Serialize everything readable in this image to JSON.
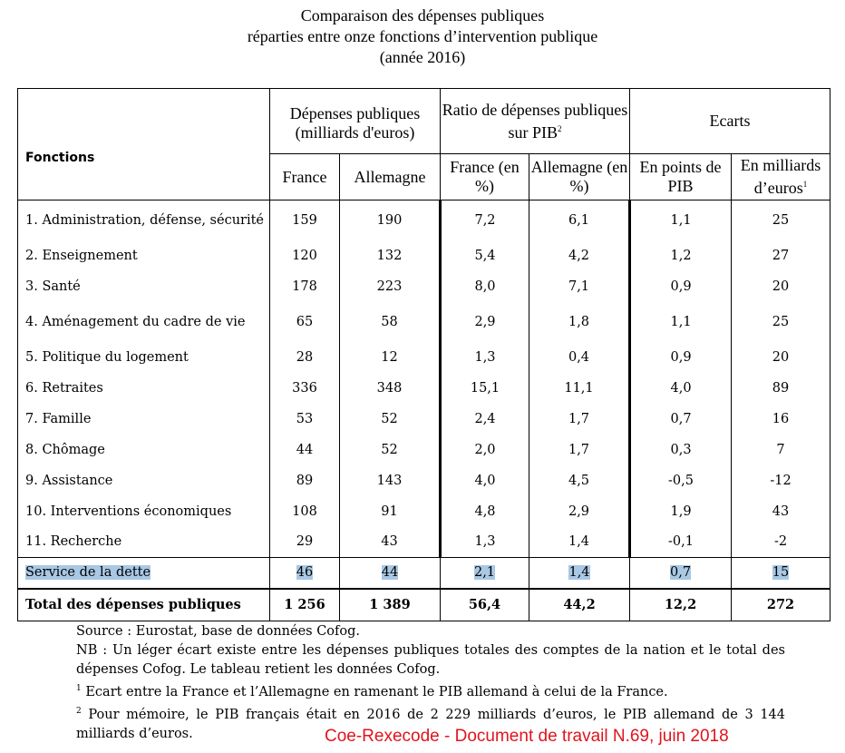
{
  "title": {
    "line1": "Comparaison des dépenses publiques",
    "line2": "réparties entre onze fonctions d’intervention publique",
    "line3": "(année 2016)"
  },
  "header": {
    "fonctions": "Fonctions",
    "group1": "Dépenses publiques (milliards d'euros)",
    "group2": "Ratio de dépenses publiques sur PIB",
    "group2_sup": "2",
    "group3": "Ecarts",
    "france": "France",
    "allemagne": "Allemagne",
    "france_pct": "France (en %)",
    "allemagne_pct": "Allemagne (en %)",
    "en_points": "En points de PIB",
    "en_milliards": "En milliards d’euros",
    "en_milliards_sup": "1"
  },
  "rows": [
    {
      "label": "1. Administration, défense, sécurité",
      "fr": "159",
      "de": "190",
      "fr_pct": "7,2",
      "de_pct": "6,1",
      "pts": "1,1",
      "mds": "25"
    },
    {
      "label": "2. Enseignement",
      "fr": "120",
      "de": "132",
      "fr_pct": "5,4",
      "de_pct": "4,2",
      "pts": "1,2",
      "mds": "27"
    },
    {
      "label": "3. Santé",
      "fr": "178",
      "de": "223",
      "fr_pct": "8,0",
      "de_pct": "7,1",
      "pts": "0,9",
      "mds": "20"
    },
    {
      "label": "4. Aménagement du cadre de vie",
      "fr": "65",
      "de": "58",
      "fr_pct": "2,9",
      "de_pct": "1,8",
      "pts": "1,1",
      "mds": "25"
    },
    {
      "label": "5. Politique du logement",
      "fr": "28",
      "de": "12",
      "fr_pct": "1,3",
      "de_pct": "0,4",
      "pts": "0,9",
      "mds": "20"
    },
    {
      "label": "6. Retraites",
      "fr": "336",
      "de": "348",
      "fr_pct": "15,1",
      "de_pct": "11,1",
      "pts": "4,0",
      "mds": "89"
    },
    {
      "label": "7. Famille",
      "fr": "53",
      "de": "52",
      "fr_pct": "2,4",
      "de_pct": "1,7",
      "pts": "0,7",
      "mds": "16"
    },
    {
      "label": "8. Chômage",
      "fr": "44",
      "de": "52",
      "fr_pct": "2,0",
      "de_pct": "1,7",
      "pts": "0,3",
      "mds": "7"
    },
    {
      "label": "9. Assistance",
      "fr": "89",
      "de": "143",
      "fr_pct": "4,0",
      "de_pct": "4,5",
      "pts": "-0,5",
      "mds": "-12"
    },
    {
      "label": "10. Interventions économiques",
      "fr": "108",
      "de": "91",
      "fr_pct": "4,8",
      "de_pct": "2,9",
      "pts": "1,9",
      "mds": "43"
    },
    {
      "label": "11. Recherche",
      "fr": "29",
      "de": "43",
      "fr_pct": "1,3",
      "de_pct": "1,4",
      "pts": "-0,1",
      "mds": "-2"
    }
  ],
  "debt_row": {
    "label": "Service de la dette",
    "fr": "46",
    "de": "44",
    "fr_pct": "2,1",
    "de_pct": "1,4",
    "pts": "0,7",
    "mds": "15"
  },
  "total_row": {
    "label": "Total des dépenses publiques",
    "fr": "1 256",
    "de": "1 389",
    "fr_pct": "56,4",
    "de_pct": "44,2",
    "pts": "12,2",
    "mds": "272"
  },
  "notes": {
    "source": "Source : Eurostat, base de données Cofog.",
    "nb": "NB : Un léger écart existe entre les dépenses publiques totales des comptes de la nation et le total des dépenses Cofog. Le tableau retient les données Cofog.",
    "note1_sup": "1",
    "note1": " Ecart entre la France et l’Allemagne en ramenant le PIB allemand à celui de la France.",
    "note2_sup": "2",
    "note2": " Pour mémoire, le PIB français était en 2016 de 2 229 milliards d’euros, le PIB allemand de 3 144 milliards d’euros."
  },
  "credit": "Coe-Rexecode - Document de travail N.69, juin 2018",
  "colors": {
    "highlight": "#a8c8e4",
    "credit": "#e0141e"
  }
}
